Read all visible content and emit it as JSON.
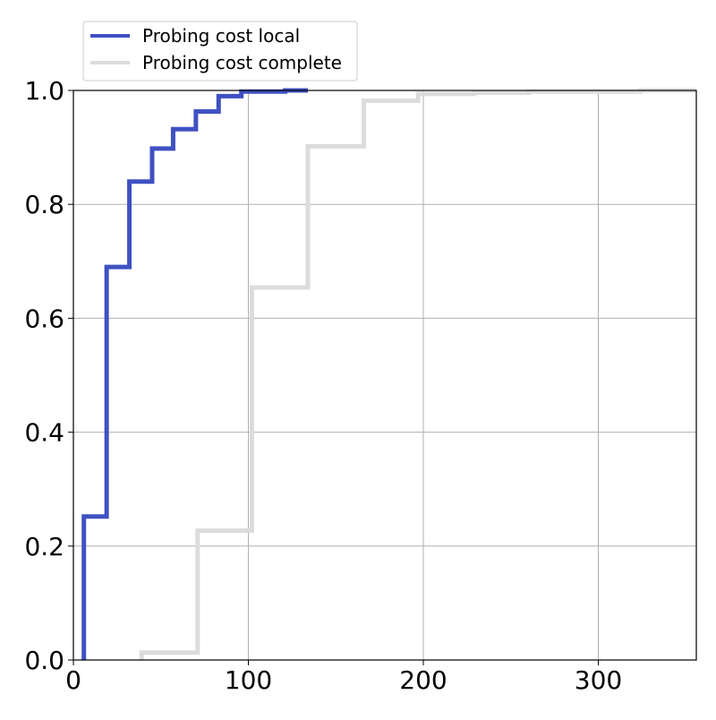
{
  "chart_data": {
    "type": "line",
    "step": true,
    "title": "",
    "xlabel": "",
    "ylabel": "",
    "xlim": [
      0,
      356
    ],
    "ylim": [
      0,
      1.0
    ],
    "grid": true,
    "legend_position": "above-top-left",
    "xticks": [
      0,
      100,
      200,
      300
    ],
    "yticks": [
      0.0,
      0.2,
      0.4,
      0.6,
      0.8,
      1.0
    ],
    "xtick_labels": [
      "0",
      "100",
      "200",
      "300"
    ],
    "ytick_labels": [
      "0.0",
      "0.2",
      "0.4",
      "0.6",
      "0.8",
      "1.0"
    ],
    "series": [
      {
        "name": "Probing cost local",
        "color": "#3f51c2",
        "x": [
          6,
          6,
          19,
          32,
          45,
          57,
          70,
          83,
          96,
          121,
          134
        ],
        "y": [
          0.0,
          0.252,
          0.69,
          0.84,
          0.898,
          0.932,
          0.963,
          0.99,
          0.998,
          1.0,
          1.0
        ]
      },
      {
        "name": "Probing cost complete",
        "color": "#dcdcdc",
        "x": [
          39,
          39,
          71,
          102,
          134,
          166,
          197,
          229,
          260,
          324,
          356
        ],
        "y": [
          0.0,
          0.013,
          0.227,
          0.654,
          0.902,
          0.982,
          0.994,
          0.996,
          0.998,
          1.0,
          1.0
        ]
      }
    ]
  }
}
